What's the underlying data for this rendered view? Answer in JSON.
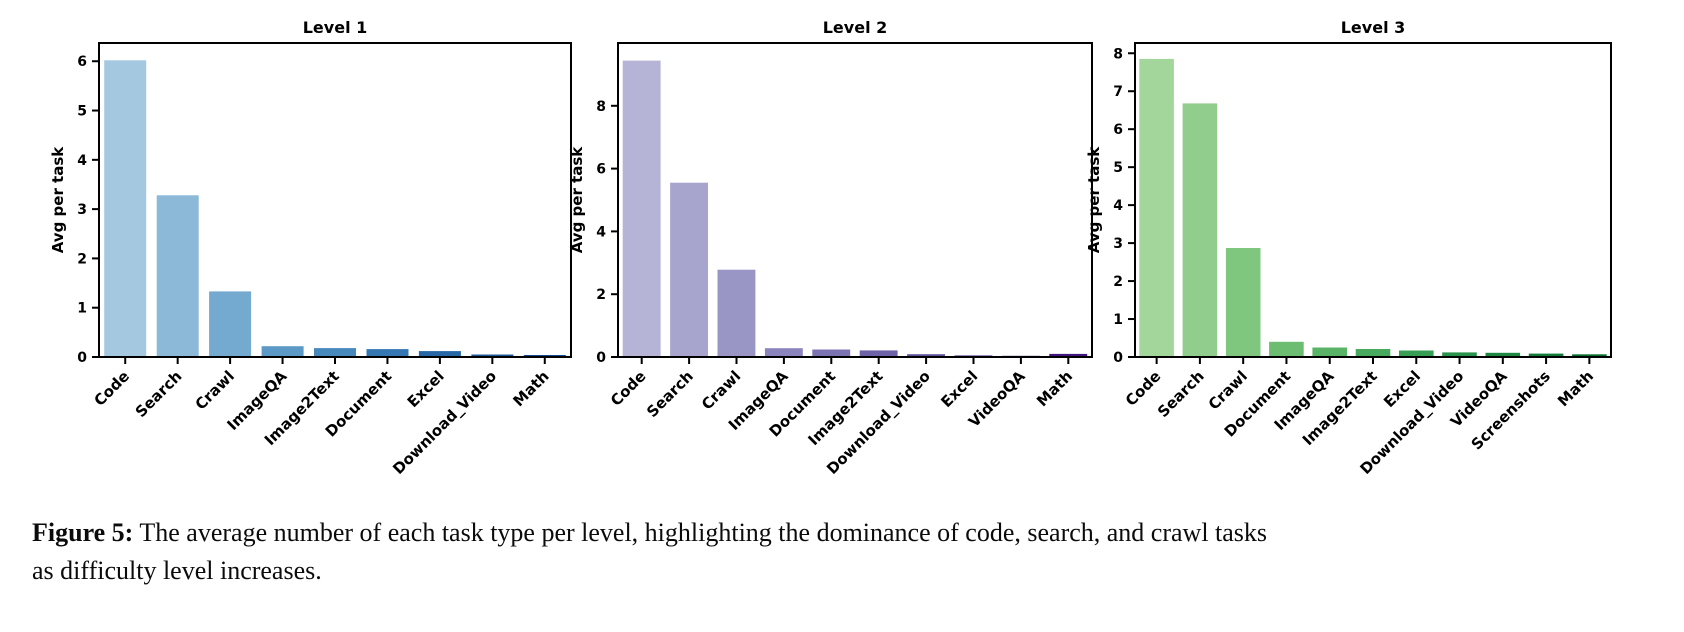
{
  "figure": {
    "caption_prefix": "Figure 5:",
    "caption_line1_rest": " The average number of each task type per level, highlighting the dominance of code, search, and crawl tasks",
    "caption_line2": "as difficulty level increases."
  },
  "chart_data": [
    {
      "type": "bar",
      "title": "Level 1",
      "xlabel": "",
      "ylabel": "Avg per task",
      "categories": [
        "Code",
        "Search",
        "Crawl",
        "ImageQA",
        "Image2Text",
        "Document",
        "Excel",
        "Download_Video",
        "Math"
      ],
      "values": [
        6.02,
        3.28,
        1.33,
        0.22,
        0.18,
        0.16,
        0.12,
        0.05,
        0.04
      ],
      "colors": [
        "#a5c8e1",
        "#8db9d9",
        "#74a9d0",
        "#5c99c7",
        "#4789bd",
        "#3577b2",
        "#2767a6",
        "#1c5899",
        "#12498c"
      ],
      "ylim": [
        0,
        6.37
      ],
      "yticks": [
        0,
        1,
        2,
        3,
        4,
        5,
        6
      ],
      "grid": false,
      "legend": "none",
      "x_tick_rotation_deg": 45,
      "axis_color": "#000000"
    },
    {
      "type": "bar",
      "title": "Level 2",
      "xlabel": "",
      "ylabel": "Avg per task",
      "categories": [
        "Code",
        "Search",
        "Crawl",
        "ImageQA",
        "Document",
        "Image2Text",
        "Download_Video",
        "Excel",
        "VideoQA",
        "Math"
      ],
      "values": [
        9.44,
        5.55,
        2.78,
        0.28,
        0.24,
        0.21,
        0.09,
        0.05,
        0.02,
        0.1
      ],
      "colors": [
        "#b5b4d6",
        "#a7a5cd",
        "#9995c5",
        "#8a85bc",
        "#7c74b2",
        "#6e63a8",
        "#60519d",
        "#523e92",
        "#452a87",
        "#3f157e"
      ],
      "ylim": [
        0,
        10.0
      ],
      "yticks": [
        0,
        2,
        4,
        6,
        8
      ],
      "grid": false,
      "legend": "none",
      "x_tick_rotation_deg": 45,
      "axis_color": "#000000"
    },
    {
      "type": "bar",
      "title": "Level 3",
      "xlabel": "",
      "ylabel": "Avg per task",
      "categories": [
        "Code",
        "Search",
        "Crawl",
        "Document",
        "ImageQA",
        "Image2Text",
        "Excel",
        "Download_Video",
        "VideoQA",
        "Screenshots",
        "Math"
      ],
      "values": [
        7.85,
        6.68,
        2.87,
        0.4,
        0.25,
        0.21,
        0.17,
        0.12,
        0.11,
        0.09,
        0.07
      ],
      "colors": [
        "#a3d69b",
        "#91ce8d",
        "#7fc67f",
        "#6cbd72",
        "#5ab467",
        "#48aa5e",
        "#379f54",
        "#2a934b",
        "#1e8742",
        "#137b38",
        "#0a702f"
      ],
      "ylim": [
        0,
        8.27
      ],
      "yticks": [
        0,
        1,
        2,
        3,
        4,
        5,
        6,
        7,
        8
      ],
      "grid": false,
      "legend": "none",
      "x_tick_rotation_deg": 45,
      "axis_color": "#000000"
    }
  ]
}
